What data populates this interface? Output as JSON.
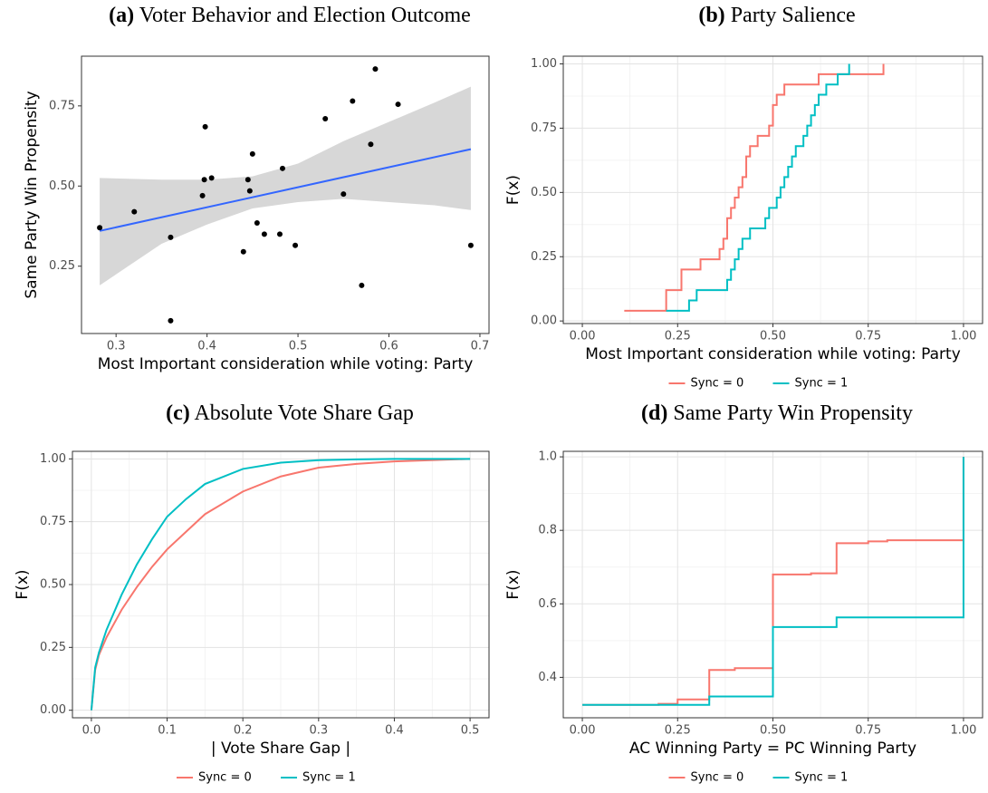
{
  "chart_data": [
    {
      "type": "scatter",
      "label": "(a)",
      "title": "Voter Behavior and Election Outcome",
      "xlabel": "Most Important consideration while voting: Party",
      "ylabel": "Same Party Win Propensity",
      "x": [
        0.282,
        0.32,
        0.36,
        0.36,
        0.395,
        0.397,
        0.398,
        0.405,
        0.44,
        0.445,
        0.447,
        0.45,
        0.455,
        0.463,
        0.48,
        0.483,
        0.497,
        0.53,
        0.55,
        0.56,
        0.57,
        0.58,
        0.585,
        0.61,
        0.69
      ],
      "values": [
        0.37,
        0.42,
        0.34,
        0.08,
        0.47,
        0.52,
        0.685,
        0.525,
        0.295,
        0.52,
        0.485,
        0.6,
        0.385,
        0.35,
        0.35,
        0.555,
        0.315,
        0.71,
        0.475,
        0.765,
        0.19,
        0.63,
        0.865,
        0.755,
        0.315
      ],
      "color": "#000000",
      "fit_x": [
        0.282,
        0.69
      ],
      "fit_values": [
        0.36,
        0.615
      ],
      "fit_color": "#3366FF",
      "band_x": [
        0.282,
        0.35,
        0.4,
        0.45,
        0.5,
        0.55,
        0.6,
        0.65,
        0.69
      ],
      "band_lower": [
        0.19,
        0.32,
        0.38,
        0.43,
        0.45,
        0.46,
        0.45,
        0.44,
        0.425
      ],
      "band_upper": [
        0.525,
        0.52,
        0.52,
        0.53,
        0.57,
        0.64,
        0.7,
        0.76,
        0.81
      ],
      "band_color": "#d3d3d3",
      "xlim": [
        0.262,
        0.71
      ],
      "ylim": [
        0.04,
        0.905
      ],
      "xticks": [
        0.3,
        0.4,
        0.5,
        0.6,
        0.7
      ],
      "yticks": [
        0.25,
        {
          "value": 0.5,
          "label": "0.50"
        },
        0.75
      ],
      "grid": false
    },
    {
      "type": "step",
      "label": "(b)",
      "title": "Party Salience",
      "xlabel": "Most Important consideration while voting: Party",
      "ylabel": "F(x)",
      "series": [
        {
          "name": "Sync = 0",
          "color": "#F8766D",
          "x": [
            0.11,
            0.22,
            0.26,
            0.31,
            0.36,
            0.37,
            0.38,
            0.39,
            0.4,
            0.41,
            0.42,
            0.43,
            0.44,
            0.46,
            0.49,
            0.5,
            0.51,
            0.53,
            0.62,
            0.79
          ],
          "values": [
            0.04,
            0.12,
            0.2,
            0.24,
            0.28,
            0.32,
            0.4,
            0.44,
            0.48,
            0.52,
            0.56,
            0.64,
            0.68,
            0.72,
            0.76,
            0.84,
            0.88,
            0.92,
            0.96,
            1.0
          ]
        },
        {
          "name": "Sync = 1",
          "color": "#00BFC4",
          "x": [
            0.22,
            0.28,
            0.3,
            0.38,
            0.39,
            0.4,
            0.41,
            0.42,
            0.44,
            0.48,
            0.49,
            0.51,
            0.52,
            0.53,
            0.54,
            0.55,
            0.56,
            0.58,
            0.59,
            0.6,
            0.61,
            0.62,
            0.64,
            0.67,
            0.7
          ],
          "values": [
            0.04,
            0.08,
            0.12,
            0.16,
            0.2,
            0.24,
            0.28,
            0.32,
            0.36,
            0.4,
            0.44,
            0.48,
            0.52,
            0.56,
            0.6,
            0.64,
            0.68,
            0.72,
            0.76,
            0.8,
            0.84,
            0.88,
            0.92,
            0.96,
            1.0
          ]
        }
      ],
      "xlim": [
        -0.05,
        1.05
      ],
      "ylim": [
        -0.01,
        1.03
      ],
      "xticks": [
        {
          "value": 0,
          "label": "0.00"
        },
        0.25,
        {
          "value": 0.5,
          "label": "0.50"
        },
        0.75,
        {
          "value": 1,
          "label": "1.00"
        }
      ],
      "yticks": [
        {
          "value": 0,
          "label": "0.00"
        },
        0.25,
        {
          "value": 0.5,
          "label": "0.50"
        },
        0.75,
        {
          "value": 1,
          "label": "1.00"
        }
      ],
      "grid": true,
      "legend": "bottom"
    },
    {
      "type": "line",
      "label": "(c)",
      "title": "Absolute Vote Share Gap",
      "xlabel": "| Vote Share Gap |",
      "ylabel": "F(x)",
      "series": [
        {
          "name": "Sync = 0",
          "color": "#F8766D",
          "x": [
            0,
            0.005,
            0.01,
            0.02,
            0.04,
            0.06,
            0.08,
            0.1,
            0.125,
            0.15,
            0.2,
            0.25,
            0.3,
            0.35,
            0.4,
            0.5
          ],
          "values": [
            0,
            0.16,
            0.22,
            0.29,
            0.4,
            0.49,
            0.57,
            0.64,
            0.71,
            0.78,
            0.87,
            0.93,
            0.965,
            0.98,
            0.99,
            1.0
          ]
        },
        {
          "name": "Sync = 1",
          "color": "#00BFC4",
          "x": [
            0,
            0.005,
            0.01,
            0.02,
            0.04,
            0.06,
            0.08,
            0.1,
            0.125,
            0.15,
            0.2,
            0.25,
            0.3,
            0.35,
            0.4,
            0.5
          ],
          "values": [
            0,
            0.17,
            0.23,
            0.32,
            0.46,
            0.58,
            0.68,
            0.77,
            0.84,
            0.9,
            0.96,
            0.985,
            0.995,
            0.998,
            1.0,
            1.0
          ]
        }
      ],
      "xlim": [
        -0.025,
        0.525
      ],
      "ylim": [
        -0.03,
        1.03
      ],
      "xticks": [
        {
          "value": 0,
          "label": "0.0"
        },
        0.1,
        0.2,
        0.3,
        0.4,
        0.5
      ],
      "yticks": [
        {
          "value": 0,
          "label": "0.00"
        },
        0.25,
        {
          "value": 0.5,
          "label": "0.50"
        },
        0.75,
        {
          "value": 1,
          "label": "1.00"
        }
      ],
      "grid": true,
      "legend": "bottom"
    },
    {
      "type": "step",
      "label": "(d)",
      "title": "Same Party Win Propensity",
      "xlabel": "AC Winning Party = PC Winning Party",
      "ylabel": "F(x)",
      "series": [
        {
          "name": "Sync = 0",
          "color": "#F8766D",
          "x": [
            0,
            0.2,
            0.25,
            0.333,
            0.4,
            0.5,
            0.6,
            0.667,
            0.75,
            0.8,
            1.0
          ],
          "values": [
            0.325,
            0.328,
            0.34,
            0.42,
            0.425,
            0.68,
            0.683,
            0.765,
            0.77,
            0.773,
            1.0
          ]
        },
        {
          "name": "Sync = 1",
          "color": "#00BFC4",
          "x": [
            0,
            0.333,
            0.5,
            0.667,
            1.0
          ],
          "values": [
            0.325,
            0.348,
            0.537,
            0.563,
            1.0
          ]
        }
      ],
      "xlim": [
        -0.05,
        1.05
      ],
      "ylim": [
        0.29,
        1.015
      ],
      "xticks": [
        {
          "value": 0,
          "label": "0.00"
        },
        0.25,
        {
          "value": 0.5,
          "label": "0.50"
        },
        0.75,
        {
          "value": 1,
          "label": "1.00"
        }
      ],
      "yticks": [
        0.4,
        0.6,
        0.8,
        {
          "value": 1,
          "label": "1.0"
        }
      ],
      "grid": true,
      "legend": "bottom"
    }
  ]
}
